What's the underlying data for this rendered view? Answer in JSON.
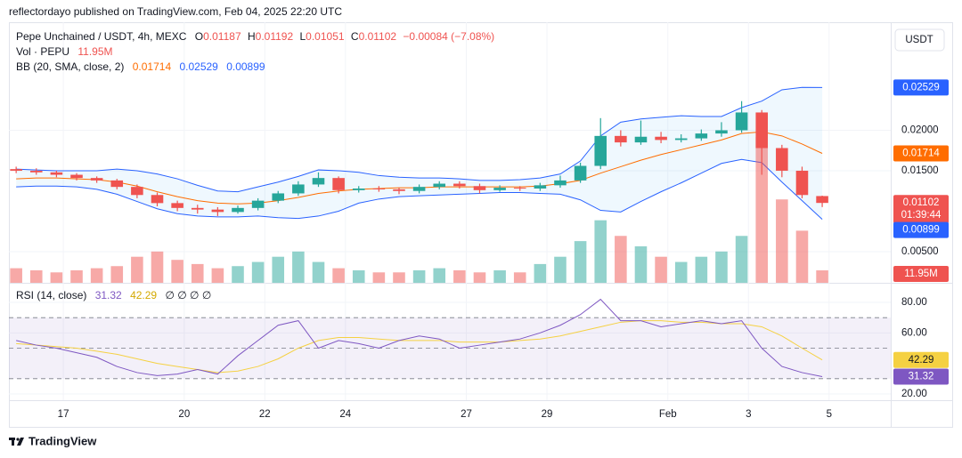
{
  "chart_data": {
    "type": "candlestick",
    "published": "reflectordayo published on TradingView.com, Feb 04, 2025 22:20 UTC",
    "title": "Pepe Unchained / USDT, 4h, MEXC",
    "brand": "TradingView",
    "currency": "USDT",
    "header": {
      "o_label": "O",
      "h_label": "H",
      "l_label": "L",
      "c_label": "C",
      "change": "−0.00084 (−7.08%)"
    },
    "countdown": "01:39:44",
    "up_color": "#26a69a",
    "down_color": "#ef5350",
    "x": [
      15.83,
      16.33,
      16.83,
      17.33,
      17.83,
      18.33,
      18.83,
      19.33,
      19.83,
      20.33,
      20.83,
      21.33,
      21.83,
      22.33,
      22.83,
      23.33,
      23.83,
      24.33,
      24.83,
      25.33,
      25.83,
      26.33,
      26.83,
      27.33,
      27.83,
      28.33,
      28.83,
      29.33,
      29.83,
      30.33,
      30.83,
      31.33,
      31.83,
      32.33,
      32.83,
      33.33,
      33.83,
      34.33,
      34.83,
      35.33,
      35.83
    ],
    "xlim": [
      15.65,
      37.53
    ],
    "xticks": [
      17,
      20,
      22,
      24,
      27,
      29,
      {
        "value": 32,
        "label": "Feb"
      },
      {
        "value": 34,
        "label": "3"
      },
      {
        "value": 36,
        "label": "5"
      }
    ],
    "open": [
      0.0152,
      0.015,
      0.0148,
      0.0145,
      0.0141,
      0.0138,
      0.013,
      0.012,
      0.011,
      0.0104,
      0.0102,
      0.0099,
      0.0104,
      0.0113,
      0.0122,
      0.0133,
      0.0141,
      0.0126,
      0.0128,
      0.0127,
      0.0125,
      0.013,
      0.0134,
      0.0131,
      0.0126,
      0.0129,
      0.0128,
      0.0132,
      0.0138,
      0.0156,
      0.0193,
      0.0185,
      0.0192,
      0.0188,
      0.019,
      0.0196,
      0.02,
      0.0222,
      0.0178,
      0.015,
      0.01187
    ],
    "high": [
      0.0155,
      0.0153,
      0.015,
      0.0147,
      0.0143,
      0.014,
      0.0133,
      0.0123,
      0.0113,
      0.0108,
      0.0105,
      0.0107,
      0.0116,
      0.0125,
      0.0137,
      0.0148,
      0.0143,
      0.0131,
      0.0131,
      0.0129,
      0.0133,
      0.0137,
      0.0137,
      0.0134,
      0.0132,
      0.0131,
      0.0135,
      0.0144,
      0.016,
      0.0215,
      0.02,
      0.0212,
      0.0198,
      0.0195,
      0.0201,
      0.021,
      0.0236,
      0.0225,
      0.0182,
      0.0155,
      0.01192
    ],
    "low": [
      0.0147,
      0.0145,
      0.0142,
      0.0138,
      0.0135,
      0.0127,
      0.0116,
      0.0106,
      0.01,
      0.0097,
      0.0094,
      0.0097,
      0.0101,
      0.011,
      0.0119,
      0.013,
      0.0122,
      0.0123,
      0.0124,
      0.0121,
      0.0122,
      0.0127,
      0.0128,
      0.0122,
      0.0124,
      0.0125,
      0.0125,
      0.0129,
      0.0135,
      0.0152,
      0.018,
      0.0182,
      0.0184,
      0.0185,
      0.0187,
      0.0192,
      0.0197,
      0.0145,
      0.0142,
      0.0116,
      0.01051
    ],
    "close": [
      0.015,
      0.0148,
      0.0145,
      0.0141,
      0.0138,
      0.013,
      0.012,
      0.011,
      0.0104,
      0.0102,
      0.0099,
      0.0104,
      0.0113,
      0.0122,
      0.0133,
      0.0141,
      0.0126,
      0.0128,
      0.0127,
      0.0125,
      0.013,
      0.0134,
      0.0131,
      0.0126,
      0.0129,
      0.0128,
      0.0132,
      0.0138,
      0.0156,
      0.0193,
      0.0185,
      0.0192,
      0.0188,
      0.019,
      0.0196,
      0.02,
      0.0222,
      0.0178,
      0.015,
      0.012,
      0.01102
    ],
    "ylim": [
      0.00115,
      0.03335
    ],
    "yticks": [
      {
        "value": 0.005,
        "label": "0.00500"
      },
      {
        "value": 0.015,
        "label": "0.01500"
      },
      {
        "value": 0.02,
        "label": "0.02000"
      }
    ],
    "grid": true,
    "volume": {
      "name": "Vol · PEPU",
      "vlim": [
        0,
        250000000
      ],
      "values": [
        14000000,
        12000000,
        10000000,
        12000000,
        14000000,
        16000000,
        25000000,
        30000000,
        22000000,
        18000000,
        14000000,
        16000000,
        20000000,
        25000000,
        30000000,
        20000000,
        14000000,
        12000000,
        10000000,
        10000000,
        12000000,
        14000000,
        12000000,
        10000000,
        12000000,
        10000000,
        18000000,
        25000000,
        40000000,
        60000000,
        45000000,
        35000000,
        25000000,
        20000000,
        25000000,
        30000000,
        45000000,
        140000000,
        80000000,
        50000000,
        11950000
      ],
      "value_labels": [
        null,
        null,
        null,
        null,
        null,
        null,
        null,
        null,
        null,
        null,
        null,
        null,
        null,
        null,
        null,
        null,
        null,
        null,
        null,
        null,
        null,
        null,
        null,
        null,
        null,
        null,
        null,
        null,
        null,
        null,
        null,
        null,
        null,
        null,
        null,
        null,
        null,
        null,
        null,
        null,
        "11.95M"
      ]
    },
    "bb": {
      "name": "BB (20, SMA, close, 2)",
      "fill_color": "rgba(33,150,243,0.07)",
      "basis": {
        "color": "#ff6d00",
        "values": [
          0.014,
          0.0141,
          0.0141,
          0.014,
          0.0139,
          0.0136,
          0.0131,
          0.0124,
          0.0118,
          0.0113,
          0.011,
          0.0109,
          0.011,
          0.0113,
          0.0117,
          0.0122,
          0.0125,
          0.0127,
          0.0128,
          0.0129,
          0.0129,
          0.013,
          0.013,
          0.013,
          0.013,
          0.013,
          0.0131,
          0.0134,
          0.0138,
          0.0147,
          0.0155,
          0.0163,
          0.017,
          0.0176,
          0.0182,
          0.0188,
          0.0196,
          0.0198,
          0.0193,
          0.0183,
          0.01714
        ]
      },
      "upper": {
        "color": "#2962ff",
        "values": [
          0.0152,
          0.0151,
          0.015,
          0.015,
          0.015,
          0.0152,
          0.015,
          0.0146,
          0.014,
          0.0132,
          0.0125,
          0.0124,
          0.013,
          0.0136,
          0.0143,
          0.0151,
          0.015,
          0.0148,
          0.0144,
          0.0142,
          0.0141,
          0.0141,
          0.014,
          0.0138,
          0.0138,
          0.0139,
          0.0141,
          0.0146,
          0.0162,
          0.0193,
          0.021,
          0.0214,
          0.0216,
          0.0218,
          0.0217,
          0.0217,
          0.0228,
          0.0236,
          0.025,
          0.0253,
          0.02529
        ]
      },
      "lower": {
        "color": "#2962ff",
        "values": [
          0.013,
          0.0131,
          0.0131,
          0.013,
          0.0127,
          0.0121,
          0.0112,
          0.0103,
          0.0097,
          0.0094,
          0.0093,
          0.0093,
          0.0094,
          0.0092,
          0.0091,
          0.0094,
          0.01,
          0.011,
          0.0115,
          0.0118,
          0.0119,
          0.012,
          0.0121,
          0.0122,
          0.0123,
          0.0123,
          0.0122,
          0.0121,
          0.0114,
          0.0101,
          0.0099,
          0.0112,
          0.0124,
          0.0135,
          0.0147,
          0.0159,
          0.0164,
          0.016,
          0.0136,
          0.0113,
          0.00899
        ]
      }
    },
    "rsi": {
      "name": "RSI (14, close)",
      "extra": "∅ ∅ ∅ ∅",
      "color": "#7e57c2",
      "band_color": "rgba(126,87,194,0.09)",
      "ylim": [
        15.9,
        90.5
      ],
      "yticks": [
        {
          "value": 20,
          "label": "20.00"
        },
        {
          "value": 60,
          "label": "60.00"
        },
        {
          "value": 80,
          "label": "80.00"
        }
      ],
      "levels": [
        70,
        50,
        30
      ],
      "values": [
        55,
        52,
        50,
        47,
        44,
        38,
        34,
        32,
        33,
        36,
        33,
        45,
        55,
        65,
        68,
        50,
        55,
        53,
        50,
        55,
        58,
        56,
        50,
        52,
        54,
        56,
        60,
        65,
        72,
        82,
        68,
        68,
        64,
        66,
        68,
        66,
        68,
        50,
        38,
        34,
        31.32
      ],
      "ma": {
        "color": "#f5d142",
        "values": [
          53,
          52,
          51,
          50,
          48,
          46,
          43,
          40,
          38,
          36,
          34,
          35,
          38,
          43,
          50,
          55,
          57,
          57,
          56,
          55,
          55,
          55,
          54,
          54,
          54,
          55,
          56,
          58,
          61,
          64,
          67,
          68,
          68,
          67,
          67,
          66,
          66,
          64,
          58,
          50,
          42.29
        ]
      }
    }
  }
}
